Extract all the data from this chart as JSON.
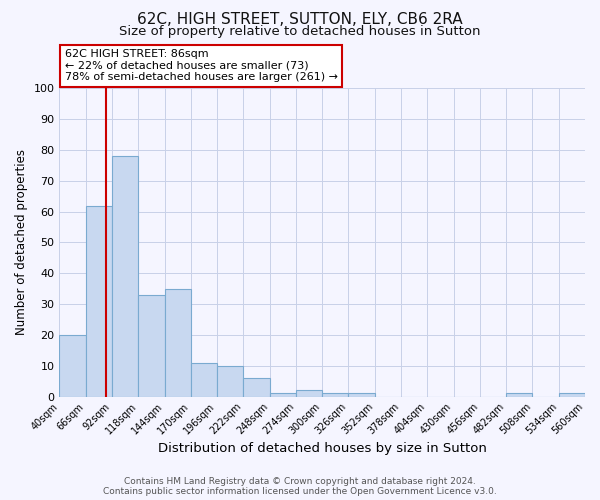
{
  "title": "62C, HIGH STREET, SUTTON, ELY, CB6 2RA",
  "subtitle": "Size of property relative to detached houses in Sutton",
  "xlabel": "Distribution of detached houses by size in Sutton",
  "ylabel": "Number of detached properties",
  "bin_edges": [
    40,
    66,
    92,
    118,
    144,
    170,
    196,
    222,
    248,
    274,
    300,
    326,
    352,
    378,
    404,
    430,
    456,
    482,
    508,
    534,
    560
  ],
  "bar_heights": [
    20,
    62,
    78,
    33,
    35,
    11,
    10,
    6,
    1,
    2,
    1,
    1,
    0,
    0,
    0,
    0,
    0,
    1,
    0,
    1
  ],
  "bar_color": "#c8d8f0",
  "bar_edgecolor": "#7aaad0",
  "vline_x": 86,
  "vline_color": "#cc0000",
  "ylim": [
    0,
    100
  ],
  "annotation_text": "62C HIGH STREET: 86sqm\n← 22% of detached houses are smaller (73)\n78% of semi-detached houses are larger (261) →",
  "footnote1": "Contains HM Land Registry data © Crown copyright and database right 2024.",
  "footnote2": "Contains public sector information licensed under the Open Government Licence v3.0.",
  "bg_color": "#f5f5ff",
  "grid_color": "#c8d0e8",
  "title_fontsize": 11,
  "subtitle_fontsize": 9.5,
  "xlabel_fontsize": 9.5,
  "ylabel_fontsize": 8.5,
  "tick_labels": [
    "40sqm",
    "66sqm",
    "92sqm",
    "118sqm",
    "144sqm",
    "170sqm",
    "196sqm",
    "222sqm",
    "248sqm",
    "274sqm",
    "300sqm",
    "326sqm",
    "352sqm",
    "378sqm",
    "404sqm",
    "430sqm",
    "456sqm",
    "482sqm",
    "508sqm",
    "534sqm",
    "560sqm"
  ]
}
